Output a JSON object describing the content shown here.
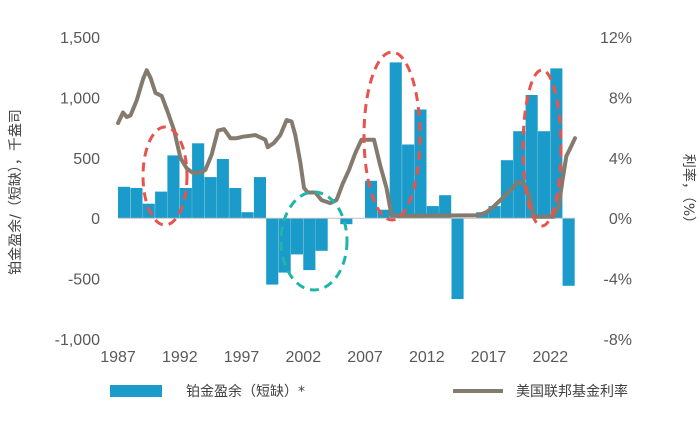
{
  "chart_data": {
    "type": "bar+line",
    "x_ticks": [
      "1987",
      "1992",
      "1997",
      "2002",
      "2007",
      "2012",
      "2017",
      "2022"
    ],
    "y_left": {
      "label": "铂金盈余/（短缺），千盎司",
      "ticks": [
        "1,500",
        "1,000",
        "500",
        "0",
        "-500",
        "-1,000"
      ],
      "range": [
        -1000,
        1500
      ]
    },
    "y_right": {
      "label": "利率，（%）",
      "ticks": [
        "12%",
        "8%",
        "4%",
        "0%",
        "-4%",
        "-8%"
      ],
      "range": [
        -8,
        12
      ]
    },
    "bar_series": {
      "name": "铂金盈余（短缺）*",
      "color": "#1a9bc9",
      "years": [
        1987,
        1988,
        1989,
        1990,
        1991,
        1992,
        1993,
        1994,
        1995,
        1996,
        1997,
        1998,
        1999,
        2000,
        2001,
        2002,
        2003,
        2004,
        2005,
        2006,
        2007,
        2008,
        2009,
        2010,
        2011,
        2012,
        2013,
        2014,
        2015,
        2016,
        2017,
        2018,
        2019,
        2020,
        2021,
        2022,
        2023
      ],
      "values": [
        260,
        250,
        120,
        220,
        520,
        250,
        620,
        340,
        490,
        250,
        50,
        340,
        -550,
        -450,
        -300,
        -430,
        -270,
        0,
        -50,
        0,
        310,
        70,
        1290,
        610,
        900,
        100,
        190,
        -670,
        0,
        50,
        100,
        480,
        720,
        1020,
        720,
        1240,
        -560
      ]
    },
    "line_series": {
      "name": "美国联邦基金利率",
      "color": "#857a6e",
      "points": [
        [
          1987.0,
          6.3
        ],
        [
          1987.4,
          7.0
        ],
        [
          1987.7,
          6.7
        ],
        [
          1988.0,
          6.8
        ],
        [
          1988.5,
          7.8
        ],
        [
          1989.0,
          9.2
        ],
        [
          1989.3,
          9.8
        ],
        [
          1989.6,
          9.3
        ],
        [
          1990.0,
          8.3
        ],
        [
          1990.5,
          8.1
        ],
        [
          1991.0,
          7.0
        ],
        [
          1991.5,
          5.8
        ],
        [
          1992.0,
          4.0
        ],
        [
          1992.5,
          3.3
        ],
        [
          1993.0,
          3.0
        ],
        [
          1993.5,
          3.0
        ],
        [
          1994.0,
          3.2
        ],
        [
          1994.5,
          4.2
        ],
        [
          1995.0,
          5.8
        ],
        [
          1995.5,
          5.9
        ],
        [
          1996.0,
          5.3
        ],
        [
          1996.5,
          5.3
        ],
        [
          1997.0,
          5.4
        ],
        [
          1998.0,
          5.5
        ],
        [
          1998.8,
          5.2
        ],
        [
          1999.0,
          4.7
        ],
        [
          1999.5,
          5.0
        ],
        [
          2000.0,
          5.5
        ],
        [
          2000.5,
          6.5
        ],
        [
          2000.9,
          6.4
        ],
        [
          2001.2,
          5.5
        ],
        [
          2001.6,
          3.7
        ],
        [
          2001.9,
          2.0
        ],
        [
          2002.2,
          1.7
        ],
        [
          2002.8,
          1.7
        ],
        [
          2003.3,
          1.2
        ],
        [
          2004.0,
          1.0
        ],
        [
          2004.5,
          1.2
        ],
        [
          2005.0,
          2.3
        ],
        [
          2005.5,
          3.2
        ],
        [
          2006.0,
          4.3
        ],
        [
          2006.5,
          5.2
        ],
        [
          2007.0,
          5.2
        ],
        [
          2007.5,
          5.2
        ],
        [
          2008.0,
          3.5
        ],
        [
          2008.5,
          2.0
        ],
        [
          2008.9,
          0.2
        ],
        [
          2009.5,
          0.15
        ],
        [
          2015.9,
          0.2
        ],
        [
          2016.5,
          0.4
        ],
        [
          2017.0,
          0.7
        ],
        [
          2017.5,
          1.1
        ],
        [
          2018.0,
          1.5
        ],
        [
          2018.5,
          1.9
        ],
        [
          2019.0,
          2.4
        ],
        [
          2019.5,
          2.3
        ],
        [
          2019.9,
          1.6
        ],
        [
          2020.3,
          0.1
        ],
        [
          2021.9,
          0.1
        ],
        [
          2022.3,
          0.8
        ],
        [
          2022.6,
          2.5
        ],
        [
          2022.9,
          4.1
        ],
        [
          2023.2,
          4.6
        ],
        [
          2023.6,
          5.3
        ]
      ]
    },
    "grid": false,
    "legend_position": "bottom"
  }
}
